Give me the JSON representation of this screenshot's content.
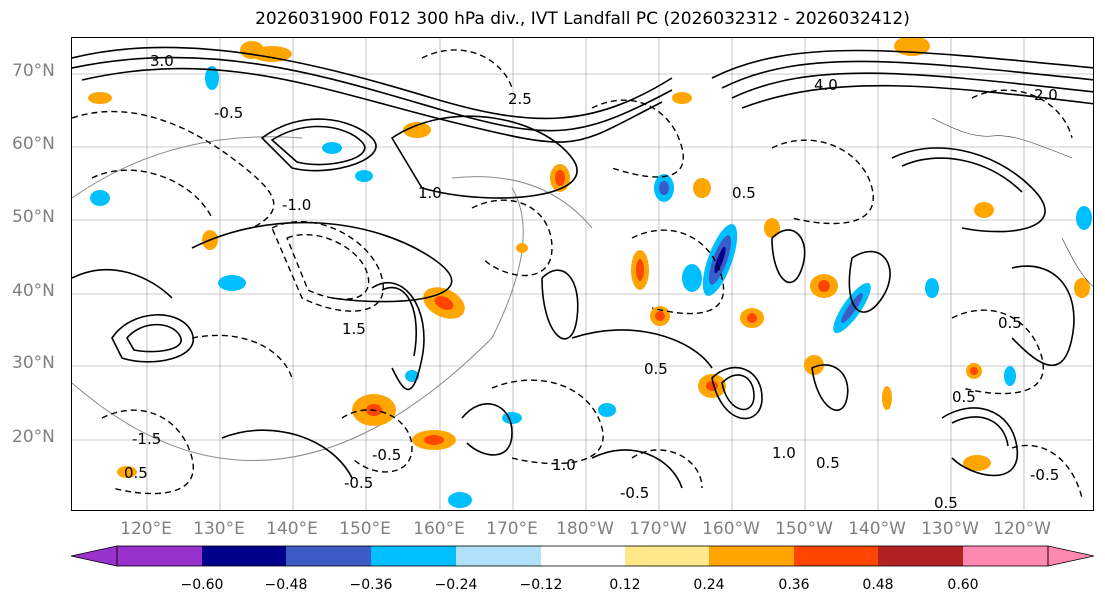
{
  "title": "2026031900 F012 300 hPa div., IVT Landfall PC (2026032312 - 2026032412)",
  "map": {
    "lat_labels": [
      "70°N",
      "60°N",
      "50°N",
      "40°N",
      "30°N",
      "20°N"
    ],
    "lon_labels": [
      "120°E",
      "130°E",
      "140°E",
      "150°E",
      "160°E",
      "170°E",
      "180°W",
      "170°W",
      "160°W",
      "150°W",
      "140°W",
      "130°W",
      "120°W"
    ],
    "contour_labels": [
      "3.0",
      "4.0",
      "2.0",
      "2.5",
      "-0.5",
      "0.5",
      "1.0",
      "-1.0",
      "1.5",
      "0.5",
      "-1.5",
      "1.0",
      "0.5",
      "-0.5",
      "0.5",
      "1.0",
      "0.5",
      "-0.5",
      "0.5",
      "0.5",
      "-0.5",
      "-0.5"
    ]
  },
  "colorbar": {
    "ticks": [
      "−0.60",
      "−0.48",
      "−0.36",
      "−0.24",
      "−0.12",
      "0.12",
      "0.24",
      "0.36",
      "0.48",
      "0.60"
    ],
    "colors": [
      "#9932cc",
      "#00008b",
      "#3b5bc6",
      "#00bfff",
      "#b0e0fa",
      "#ffffff",
      "#ffe98a",
      "#ffa500",
      "#ff4500",
      "#b22222",
      "#ff88b0"
    ]
  }
}
